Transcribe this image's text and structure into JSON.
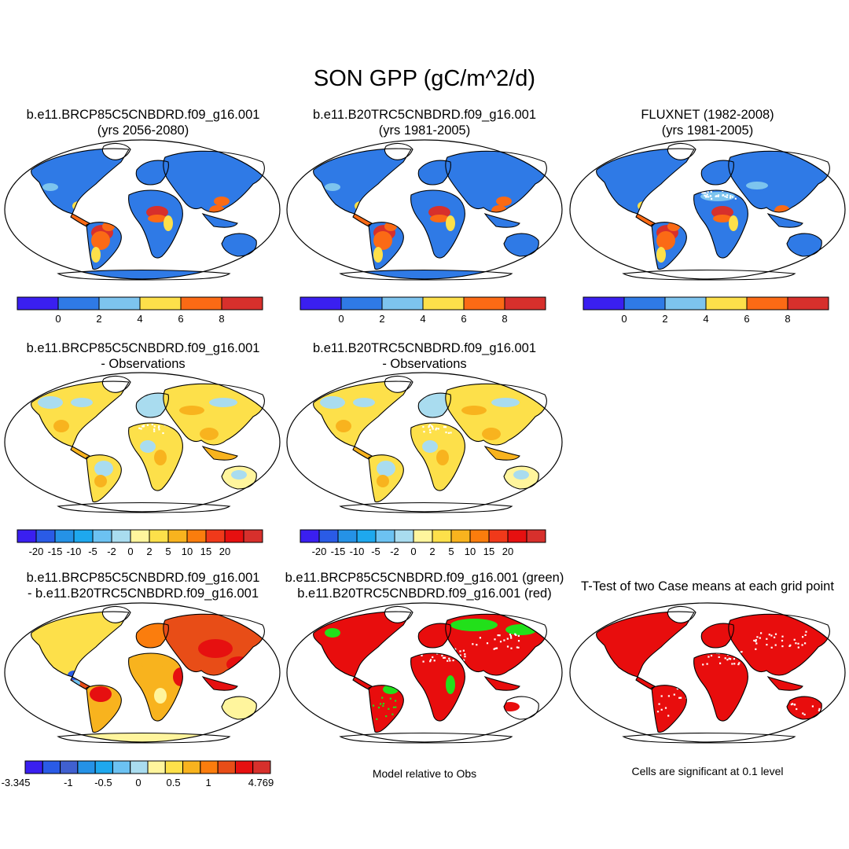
{
  "figure": {
    "title": "SON GPP (gC/m^2/d)"
  },
  "colors": {
    "abs_scale": [
      "#3a1ff0",
      "#2f7ae6",
      "#7dc4ee",
      "#fde04a",
      "#fb6a15",
      "#d7302c"
    ],
    "diff_scale": [
      "#3a1ff0",
      "#2a5be6",
      "#2592e6",
      "#1ea8ee",
      "#6cc2f2",
      "#a9dcef",
      "#fff59d",
      "#fde04a",
      "#f8b31e",
      "#fb7d0d",
      "#f0391a",
      "#e61010",
      "#d7302c"
    ],
    "difdif_scale": [
      "#3a1ff0",
      "#2a5be6",
      "#4060d0",
      "#2592e6",
      "#1ea8ee",
      "#6cc2f2",
      "#a9dcef",
      "#fff59d",
      "#fde04a",
      "#f8b31e",
      "#fb7d0d",
      "#e84d17",
      "#e61010",
      "#d7302c"
    ],
    "green": "#22e01a",
    "red": "#e80d0d",
    "coast": "#000000"
  },
  "panels": [
    {
      "id": "p1",
      "line1": "b.e11.BRCP85C5CNBDRD.f09_g16.001",
      "line2": "(yrs 2056-2080)"
    },
    {
      "id": "p2",
      "line1": "b.e11.B20TRC5CNBDRD.f09_g16.001",
      "line2": "(yrs 1981-2005)"
    },
    {
      "id": "p3",
      "line1": "FLUXNET (1982-2008)",
      "line2": "(yrs 1981-2005)"
    },
    {
      "id": "p4",
      "line1": "b.e11.BRCP85C5CNBDRD.f09_g16.001",
      "line2": "- Observations"
    },
    {
      "id": "p5",
      "line1": "b.e11.B20TRC5CNBDRD.f09_g16.001",
      "line2": "- Observations"
    },
    {
      "id": "p7",
      "line1": "b.e11.BRCP85C5CNBDRD.f09_g16.001",
      "line2": "- b.e11.B20TRC5CNBDRD.f09_g16.001"
    },
    {
      "id": "p8",
      "line1": "b.e11.BRCP85C5CNBDRD.f09_g16.001 (green)",
      "line2": "b.e11.B20TRC5CNBDRD.f09_g16.001 (red)"
    },
    {
      "id": "p9",
      "line1": "T-Test of two Case means at each grid point",
      "line2": ""
    }
  ],
  "colorbars": {
    "absolute": {
      "labels": [
        "0",
        "2",
        "4",
        "6",
        "8"
      ]
    },
    "difference": {
      "labels": [
        "-20",
        "-15",
        "-10",
        "-5",
        "-2",
        "0",
        "2",
        "5",
        "10",
        "15",
        "20"
      ]
    },
    "case_difference": {
      "labels": [
        "-3.345",
        "-1",
        "-0.5",
        "0",
        "0.5",
        "1",
        "4.769"
      ]
    }
  },
  "captions": {
    "model_relative": "Model relative to Obs",
    "significance": "Cells are significant at 0.1 level"
  }
}
